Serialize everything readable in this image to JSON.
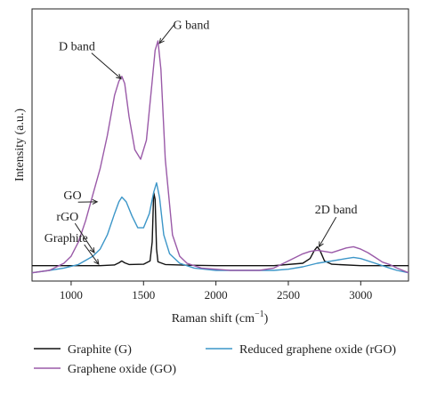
{
  "chart_data": {
    "type": "line",
    "xlabel": "Raman shift (cm",
    "xlabel_sup": "−1",
    "xlabel_close": ")",
    "ylabel": "Intensity (a.u.)",
    "xlim": [
      730,
      3330
    ],
    "ylim": [
      0,
      1.0
    ],
    "xticks": [
      1000,
      1500,
      2000,
      2500,
      3000
    ],
    "legend_position": "bottom",
    "grid": false,
    "series": [
      {
        "name": "Graphite (G)",
        "color": "#111111",
        "points": [
          [
            730,
            0.05
          ],
          [
            1000,
            0.05
          ],
          [
            1200,
            0.05
          ],
          [
            1300,
            0.053
          ],
          [
            1330,
            0.062
          ],
          [
            1350,
            0.07
          ],
          [
            1370,
            0.062
          ],
          [
            1400,
            0.055
          ],
          [
            1500,
            0.056
          ],
          [
            1545,
            0.07
          ],
          [
            1560,
            0.15
          ],
          [
            1570,
            0.36
          ],
          [
            1580,
            0.33
          ],
          [
            1590,
            0.12
          ],
          [
            1600,
            0.066
          ],
          [
            1650,
            0.055
          ],
          [
            1800,
            0.052
          ],
          [
            2000,
            0.05
          ],
          [
            2400,
            0.05
          ],
          [
            2600,
            0.06
          ],
          [
            2650,
            0.08
          ],
          [
            2680,
            0.115
          ],
          [
            2700,
            0.13
          ],
          [
            2720,
            0.112
          ],
          [
            2750,
            0.07
          ],
          [
            2800,
            0.056
          ],
          [
            3000,
            0.05
          ],
          [
            3330,
            0.05
          ]
        ]
      },
      {
        "name": "Reduced graphene oxide (rGO)",
        "color": "#3c96c8",
        "points": [
          [
            730,
            0.02
          ],
          [
            850,
            0.03
          ],
          [
            950,
            0.04
          ],
          [
            1050,
            0.055
          ],
          [
            1150,
            0.09
          ],
          [
            1200,
            0.12
          ],
          [
            1250,
            0.18
          ],
          [
            1300,
            0.27
          ],
          [
            1330,
            0.32
          ],
          [
            1350,
            0.34
          ],
          [
            1380,
            0.32
          ],
          [
            1420,
            0.26
          ],
          [
            1460,
            0.21
          ],
          [
            1500,
            0.21
          ],
          [
            1540,
            0.27
          ],
          [
            1570,
            0.36
          ],
          [
            1590,
            0.4
          ],
          [
            1610,
            0.34
          ],
          [
            1640,
            0.18
          ],
          [
            1680,
            0.1
          ],
          [
            1750,
            0.06
          ],
          [
            1850,
            0.04
          ],
          [
            2000,
            0.03
          ],
          [
            2400,
            0.03
          ],
          [
            2500,
            0.035
          ],
          [
            2600,
            0.045
          ],
          [
            2700,
            0.06
          ],
          [
            2800,
            0.07
          ],
          [
            2900,
            0.08
          ],
          [
            2950,
            0.085
          ],
          [
            3000,
            0.08
          ],
          [
            3100,
            0.06
          ],
          [
            3200,
            0.04
          ],
          [
            3250,
            0.03
          ],
          [
            3330,
            0.02
          ]
        ]
      },
      {
        "name": "Graphene oxide (GO)",
        "color": "#9a5aa8",
        "points": [
          [
            730,
            0.02
          ],
          [
            850,
            0.03
          ],
          [
            950,
            0.06
          ],
          [
            1000,
            0.09
          ],
          [
            1050,
            0.15
          ],
          [
            1100,
            0.24
          ],
          [
            1150,
            0.35
          ],
          [
            1200,
            0.46
          ],
          [
            1250,
            0.6
          ],
          [
            1300,
            0.77
          ],
          [
            1330,
            0.83
          ],
          [
            1350,
            0.85
          ],
          [
            1370,
            0.82
          ],
          [
            1400,
            0.68
          ],
          [
            1440,
            0.54
          ],
          [
            1480,
            0.5
          ],
          [
            1520,
            0.58
          ],
          [
            1560,
            0.83
          ],
          [
            1580,
            0.96
          ],
          [
            1600,
            1.0
          ],
          [
            1620,
            0.88
          ],
          [
            1650,
            0.5
          ],
          [
            1700,
            0.18
          ],
          [
            1750,
            0.09
          ],
          [
            1800,
            0.06
          ],
          [
            1900,
            0.04
          ],
          [
            2100,
            0.03
          ],
          [
            2300,
            0.03
          ],
          [
            2400,
            0.04
          ],
          [
            2500,
            0.07
          ],
          [
            2600,
            0.1
          ],
          [
            2650,
            0.11
          ],
          [
            2700,
            0.115
          ],
          [
            2750,
            0.11
          ],
          [
            2800,
            0.105
          ],
          [
            2850,
            0.115
          ],
          [
            2900,
            0.125
          ],
          [
            2950,
            0.13
          ],
          [
            3000,
            0.12
          ],
          [
            3050,
            0.105
          ],
          [
            3100,
            0.085
          ],
          [
            3150,
            0.065
          ],
          [
            3200,
            0.055
          ],
          [
            3250,
            0.04
          ],
          [
            3330,
            0.02
          ]
        ]
      }
    ],
    "annotations": [
      {
        "text": "D band",
        "label_x": 1040,
        "label_y": 0.96,
        "arrow_to": [
          1345,
          0.84
        ]
      },
      {
        "text": "G band",
        "label_x": 1830,
        "label_y": 1.05,
        "arrow_to": [
          1610,
          0.99
        ]
      },
      {
        "text": "2D band",
        "label_x": 2830,
        "label_y": 0.27,
        "arrow_to": [
          2712,
          0.13
        ]
      },
      {
        "text": "GO",
        "label_x": 1010,
        "label_y": 0.33,
        "arrow_to": [
          1180,
          0.32
        ]
      },
      {
        "text": "rGO",
        "label_x": 975,
        "label_y": 0.24,
        "arrow_to": [
          1160,
          0.105
        ]
      },
      {
        "text": "Graphite",
        "label_x": 965,
        "label_y": 0.15,
        "arrow_to": [
          1190,
          0.056
        ]
      }
    ]
  }
}
